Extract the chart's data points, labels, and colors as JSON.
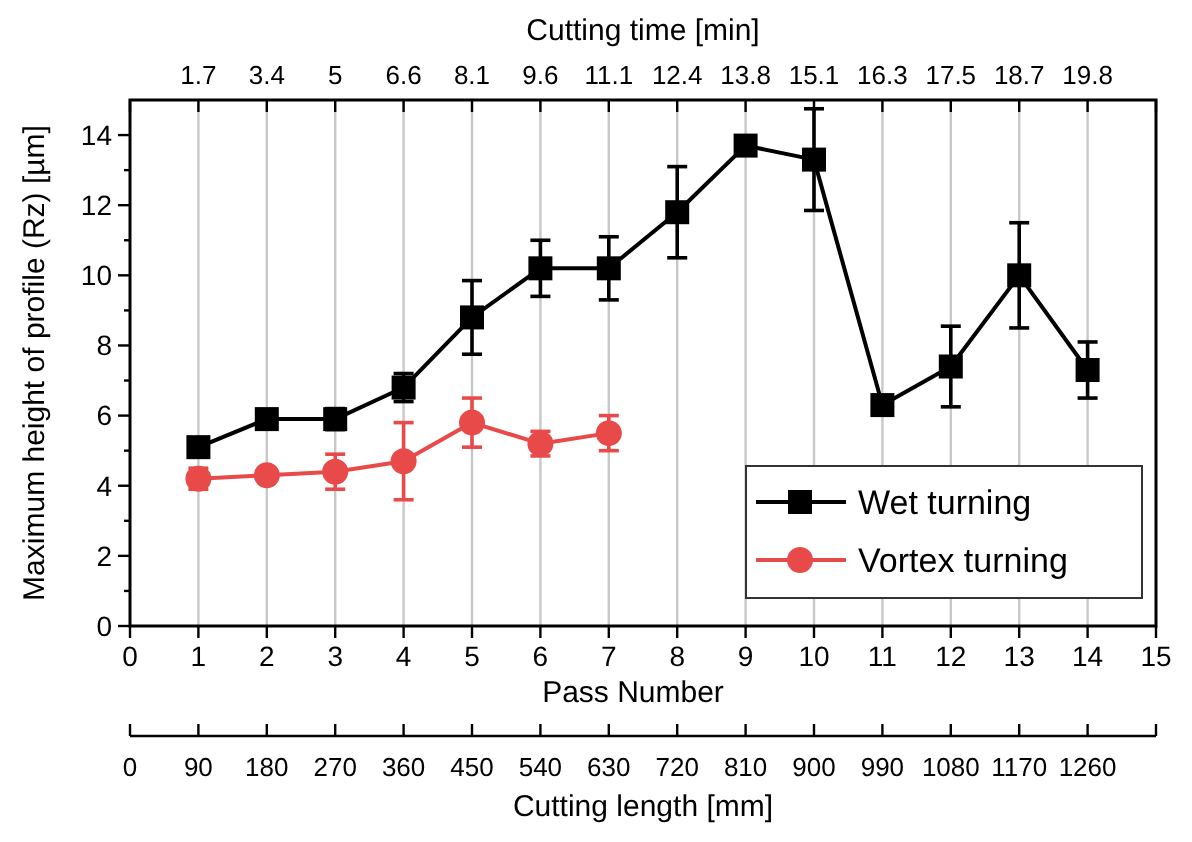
{
  "chart_data": {
    "type": "line",
    "xlabel": "Pass Number",
    "ylabel": "Maximum height of profile (Rz) [µm]",
    "x2label": "Cutting length [mm]",
    "annotations": [
      "Cutting time [min]",
      "1.7",
      "3.4",
      "5",
      "6.6",
      "8.1",
      "9.6",
      "11.1",
      "12.4",
      "13.8",
      "15.1",
      "16.3",
      "17.5",
      "18.7",
      "19.8"
    ],
    "x": [
      1,
      2,
      3,
      4,
      5,
      6,
      7,
      8,
      9,
      10,
      11,
      12,
      13,
      14
    ],
    "xlim": [
      0,
      15
    ],
    "xticks": [
      0,
      1,
      2,
      3,
      4,
      5,
      6,
      7,
      8,
      9,
      10,
      11,
      12,
      13,
      14,
      15
    ],
    "x2lim": [
      0,
      1350
    ],
    "x2ticks": [
      0,
      90,
      180,
      270,
      360,
      450,
      540,
      630,
      720,
      810,
      900,
      990,
      1080,
      1170,
      1260,
      {
        "value": 1350,
        "label": null
      }
    ],
    "ylim": [
      0,
      15
    ],
    "yticks": [
      0,
      {
        "value": 1,
        "label": null
      },
      2,
      {
        "value": 3,
        "label": null
      },
      4,
      {
        "value": 5,
        "label": null
      },
      6,
      {
        "value": 7,
        "label": null
      },
      8,
      {
        "value": 9,
        "label": null
      },
      10,
      {
        "value": 11,
        "label": null
      },
      12,
      {
        "value": 13,
        "label": null
      },
      14
    ],
    "grid": "x",
    "legend": "bottom right",
    "series": [
      {
        "name": "Wet turning",
        "color": "#000000",
        "marker": "square",
        "values": [
          5.1,
          5.9,
          5.9,
          6.8,
          8.8,
          10.2,
          10.2,
          11.8,
          13.7,
          13.3,
          6.3,
          7.4,
          10,
          7.3
        ],
        "errors": [
          0.2,
          0.2,
          0.3,
          0.4,
          1.05,
          0.8,
          0.9,
          1.3,
          0.2,
          1.45,
          0.1,
          1.15,
          1.5,
          0.8
        ]
      },
      {
        "name": "Vortex turning",
        "color": "#e84a4a",
        "marker": "circle",
        "x": [
          1,
          2,
          3,
          4,
          5,
          6,
          7
        ],
        "values": [
          4.2,
          4.3,
          4.4,
          4.7,
          5.8,
          5.2,
          5.5
        ],
        "errors": [
          0.3,
          0.1,
          0.5,
          1.1,
          0.7,
          0.35,
          0.5
        ]
      }
    ]
  }
}
